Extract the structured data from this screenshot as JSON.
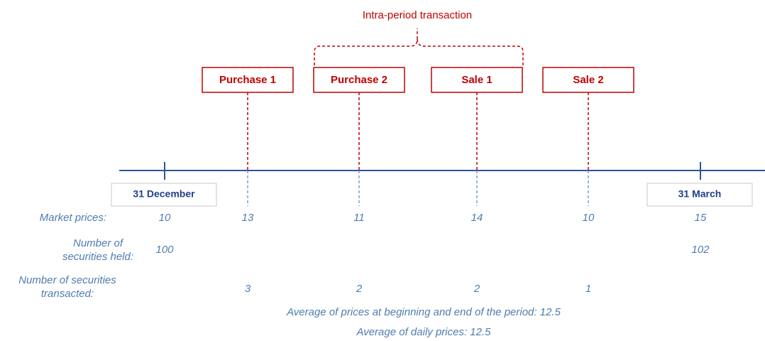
{
  "annotation": "Intra-period transaction",
  "start": {
    "label": "31 December",
    "market_price": 10,
    "securities_held": 100
  },
  "events": [
    {
      "label": "Purchase 1",
      "market_price": 13,
      "securities_transacted": 3
    },
    {
      "label": "Purchase 2",
      "market_price": 11,
      "securities_transacted": 2
    },
    {
      "label": "Sale 1",
      "market_price": 14,
      "securities_transacted": 2
    },
    {
      "label": "Sale 2",
      "market_price": 10,
      "securities_transacted": 1
    }
  ],
  "end": {
    "label": "31 March",
    "market_price": 15,
    "securities_held": 102
  },
  "row_labels": {
    "market_prices": "Market prices:",
    "securities_held": [
      "Number of",
      "securities held:"
    ],
    "securities_transacted": [
      "Number of securities",
      "transacted:"
    ]
  },
  "footnotes": [
    "Average of prices at beginning and end of the period: 12.5",
    "Average of daily prices: 12.5"
  ]
}
